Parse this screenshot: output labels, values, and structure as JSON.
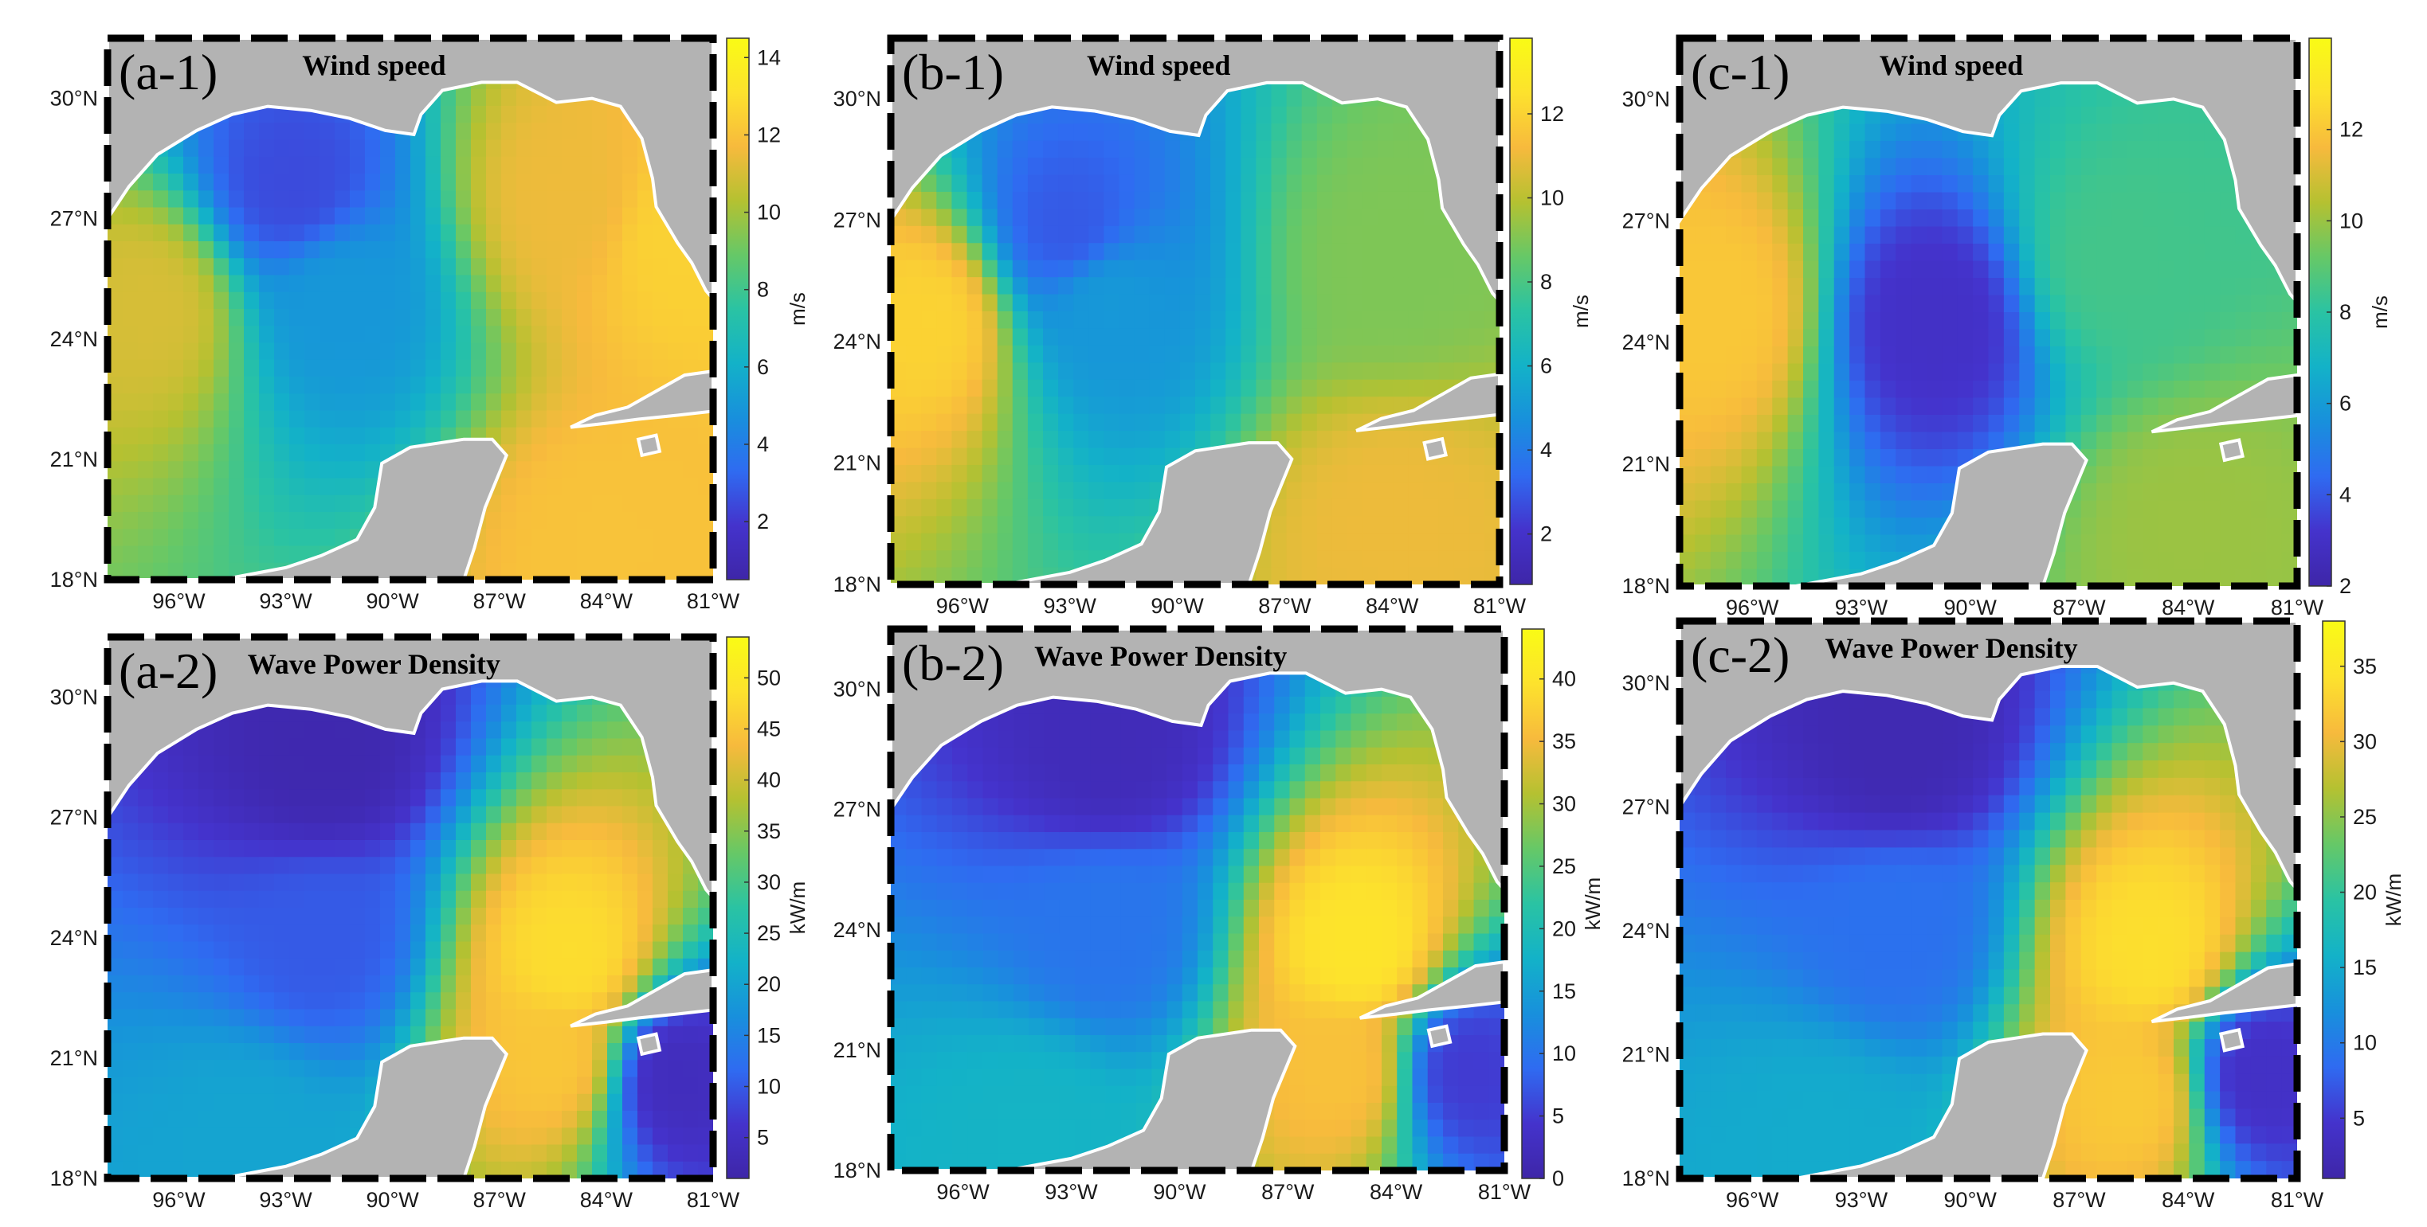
{
  "figure": {
    "colors": {
      "land": "#b3b3b3",
      "coast": "#ffffff",
      "frame": "#000000",
      "colormap": [
        "#3e26a8",
        "#4433cc",
        "#2f6bf1",
        "#1890dc",
        "#13b2c8",
        "#2ac3a3",
        "#66c867",
        "#b5c131",
        "#f7ba3d",
        "#fde22d",
        "#f9fb15"
      ]
    }
  },
  "chart_data": [
    {
      "type": "heatmap",
      "panel_label": "(a-1)",
      "title": "Wind speed",
      "colorbar": {
        "unit": "m/s",
        "ticks": [
          2,
          4,
          6,
          8,
          10,
          12,
          14
        ],
        "range": [
          0.5,
          14.5
        ]
      },
      "x_ticks": [
        "96°W",
        "93°W",
        "90°W",
        "87°W",
        "84°W",
        "81°W"
      ],
      "y_ticks": [
        "18°N",
        "21°N",
        "24°N",
        "27°N",
        "30°N"
      ],
      "xlim": [
        -98,
        -81
      ],
      "ylim": [
        18,
        31.5
      ],
      "field_centers": [
        {
          "lon": -91.5,
          "lat": 25,
          "value": 5
        },
        {
          "lon": -92.8,
          "lat": 27.8,
          "value": 2.5
        },
        {
          "lon": -96.8,
          "lat": 24.8,
          "value": 11
        },
        {
          "lon": -85,
          "lat": 27.5,
          "value": 11.5
        },
        {
          "lon": -82,
          "lat": 26.5,
          "value": 12.5
        },
        {
          "lon": -84,
          "lat": 19,
          "value": 12
        }
      ]
    },
    {
      "type": "heatmap",
      "panel_label": "(b-1)",
      "title": "Wind speed",
      "colorbar": {
        "unit": "m/s",
        "ticks": [
          2,
          4,
          6,
          8,
          10,
          12
        ],
        "range": [
          0.8,
          13.8
        ]
      },
      "x_ticks": [
        "96°W",
        "93°W",
        "90°W",
        "87°W",
        "84°W",
        "81°W"
      ],
      "y_ticks": [
        "18°N",
        "21°N",
        "24°N",
        "27°N",
        "30°N"
      ],
      "xlim": [
        -98,
        -81
      ],
      "ylim": [
        18,
        31.5
      ],
      "field_centers": [
        {
          "lon": -92,
          "lat": 25,
          "value": 5
        },
        {
          "lon": -93,
          "lat": 26.8,
          "value": 3
        },
        {
          "lon": -97,
          "lat": 24.5,
          "value": 12
        },
        {
          "lon": -84,
          "lat": 26,
          "value": 9
        },
        {
          "lon": -84,
          "lat": 19.5,
          "value": 11
        }
      ]
    },
    {
      "type": "heatmap",
      "panel_label": "(c-1)",
      "title": "Wind speed",
      "colorbar": {
        "unit": "m/s",
        "ticks": [
          2,
          4,
          6,
          8,
          10,
          12
        ],
        "range": [
          2,
          14
        ]
      },
      "x_ticks": [
        "96°W",
        "93°W",
        "90°W",
        "87°W",
        "84°W",
        "81°W"
      ],
      "y_ticks": [
        "18°N",
        "21°N",
        "24°N",
        "27°N",
        "30°N"
      ],
      "xlim": [
        -98,
        -81
      ],
      "ylim": [
        18,
        31.5
      ],
      "field_centers": [
        {
          "lon": -91,
          "lat": 24.5,
          "value": 3
        },
        {
          "lon": -97,
          "lat": 24.8,
          "value": 12
        },
        {
          "lon": -86,
          "lat": 26,
          "value": 8.5
        },
        {
          "lon": -84,
          "lat": 19.5,
          "value": 10
        }
      ]
    },
    {
      "type": "heatmap",
      "panel_label": "(a-2)",
      "title": "Wave Power Density",
      "colorbar": {
        "unit": "kW/m",
        "ticks": [
          5,
          10,
          15,
          20,
          25,
          30,
          35,
          40,
          45,
          50
        ],
        "range": [
          1,
          54
        ]
      },
      "x_ticks": [
        "96°W",
        "93°W",
        "90°W",
        "87°W",
        "84°W",
        "81°W"
      ],
      "y_ticks": [
        "18°N",
        "21°N",
        "24°N",
        "27°N",
        "30°N"
      ],
      "xlim": [
        -98,
        -81
      ],
      "ylim": [
        18,
        31.5
      ],
      "field_centers": [
        {
          "lon": -92,
          "lat": 28.5,
          "value": 2
        },
        {
          "lon": -92,
          "lat": 24,
          "value": 10
        },
        {
          "lon": -85,
          "lat": 23.5,
          "value": 48
        },
        {
          "lon": -85.5,
          "lat": 21,
          "value": 45
        },
        {
          "lon": -82,
          "lat": 20.5,
          "value": 4
        },
        {
          "lon": -94,
          "lat": 19,
          "value": 20
        }
      ]
    },
    {
      "type": "heatmap",
      "panel_label": "(b-2)",
      "title": "Wave Power Density",
      "colorbar": {
        "unit": "kW/m",
        "ticks": [
          0,
          5,
          10,
          15,
          20,
          25,
          30,
          35,
          40
        ],
        "range": [
          0,
          44
        ]
      },
      "x_ticks": [
        "96°W",
        "93°W",
        "90°W",
        "87°W",
        "84°W",
        "81°W"
      ],
      "y_ticks": [
        "18°N",
        "21°N",
        "24°N",
        "27°N",
        "30°N"
      ],
      "xlim": [
        -98,
        -81
      ],
      "ylim": [
        18,
        31.5
      ],
      "field_centers": [
        {
          "lon": -92,
          "lat": 28.5,
          "value": 2
        },
        {
          "lon": -92,
          "lat": 24,
          "value": 10
        },
        {
          "lon": -85,
          "lat": 23.5,
          "value": 40
        },
        {
          "lon": -85.5,
          "lat": 20.5,
          "value": 36
        },
        {
          "lon": -82,
          "lat": 20.5,
          "value": 5
        },
        {
          "lon": -94,
          "lat": 19,
          "value": 18
        }
      ]
    },
    {
      "type": "heatmap",
      "panel_label": "(c-2)",
      "title": "Wave Power Density",
      "colorbar": {
        "unit": "kW/m",
        "ticks": [
          5,
          10,
          15,
          20,
          25,
          30,
          35
        ],
        "range": [
          1,
          38
        ]
      },
      "x_ticks": [
        "96°W",
        "93°W",
        "90°W",
        "87°W",
        "84°W",
        "81°W"
      ],
      "y_ticks": [
        "18°N",
        "21°N",
        "24°N",
        "27°N",
        "30°N"
      ],
      "xlim": [
        -98,
        -81
      ],
      "ylim": [
        18,
        31.5
      ],
      "field_centers": [
        {
          "lon": -92,
          "lat": 28.5,
          "value": 2
        },
        {
          "lon": -92,
          "lat": 24,
          "value": 9
        },
        {
          "lon": -85,
          "lat": 23.5,
          "value": 34
        },
        {
          "lon": -85.5,
          "lat": 20,
          "value": 32
        },
        {
          "lon": -82,
          "lat": 20.5,
          "value": 4
        },
        {
          "lon": -94,
          "lat": 19,
          "value": 15
        }
      ]
    }
  ]
}
